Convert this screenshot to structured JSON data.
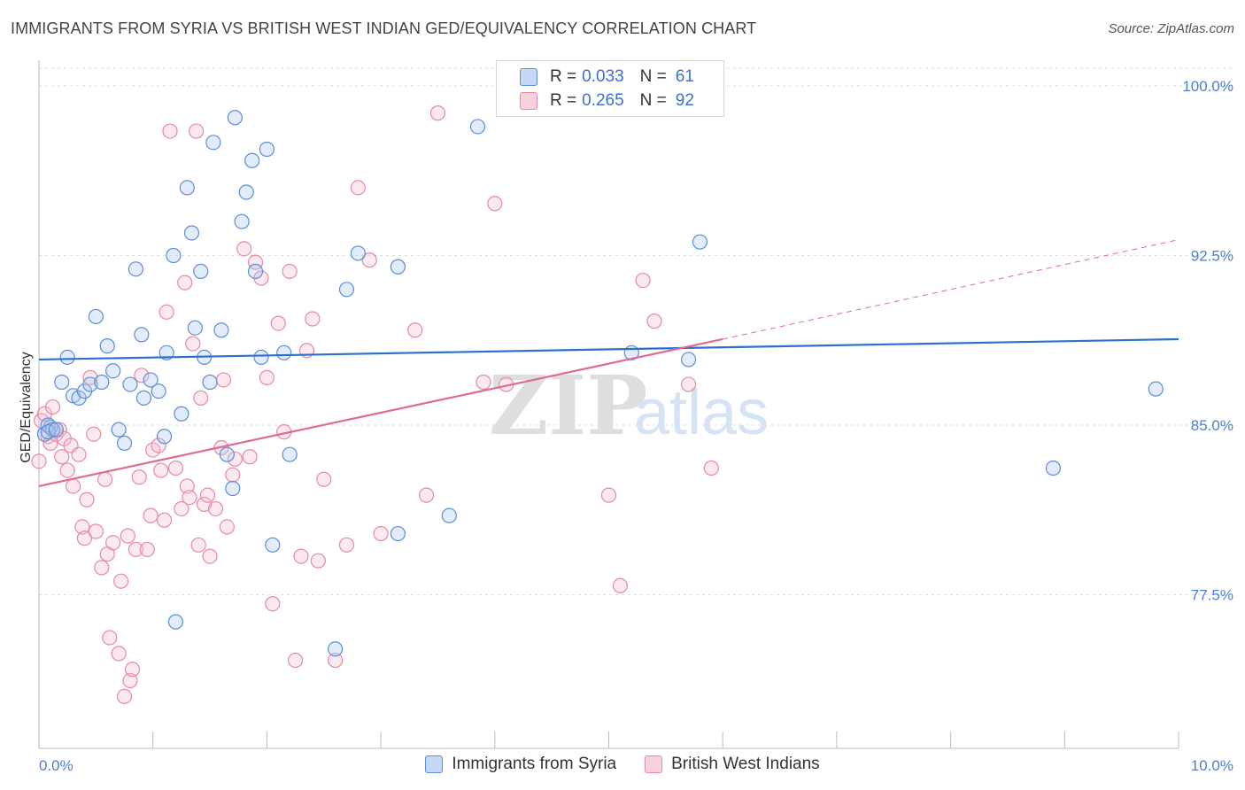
{
  "title": "IMMIGRANTS FROM SYRIA VS BRITISH WEST INDIAN GED/EQUIVALENCY CORRELATION CHART",
  "source": "Source: ZipAtlas.com",
  "watermark": {
    "zip": "ZIP",
    "atlas": "atlas"
  },
  "legend": {
    "rows": [
      {
        "r_label": "R =",
        "r_value": "0.033",
        "n_label": "N =",
        "n_value": "61"
      },
      {
        "r_label": "R =",
        "r_value": "0.265",
        "n_label": "N =",
        "n_value": "92"
      }
    ]
  },
  "colors": {
    "blue_fill": "#aec8f0",
    "blue_stroke": "#5b8ed8",
    "blue_line": "#2c6fce",
    "pink_fill": "#f5bfd0",
    "pink_stroke": "#e58aa8",
    "pink_line": "#e06a96",
    "grid": "#dddddd",
    "tick_label": "#4a7fd6"
  },
  "chart_data": {
    "type": "scatter",
    "title": "IMMIGRANTS FROM SYRIA VS BRITISH WEST INDIAN GED/EQUIVALENCY CORRELATION CHART",
    "xlabel": "",
    "ylabel": "GED/Equivalency",
    "xlim": [
      0,
      10
    ],
    "ylim": [
      70.5,
      101
    ],
    "x_tick_labels": [
      "0.0%",
      "10.0%"
    ],
    "y_ticks": [
      77.5,
      85.0,
      92.5,
      100.0
    ],
    "y_tick_labels": [
      "77.5%",
      "85.0%",
      "92.5%",
      "100.0%"
    ],
    "grid": true,
    "legend_position": "top-center",
    "series": [
      {
        "name": "Immigrants from Syria",
        "color": "blue",
        "points": [
          [
            0.05,
            84.6
          ],
          [
            0.1,
            84.9
          ],
          [
            0.08,
            85.0
          ],
          [
            0.12,
            84.8
          ],
          [
            0.2,
            86.9
          ],
          [
            0.25,
            88.0
          ],
          [
            0.3,
            86.3
          ],
          [
            0.35,
            86.2
          ],
          [
            0.4,
            86.5
          ],
          [
            0.45,
            86.8
          ],
          [
            0.5,
            89.8
          ],
          [
            0.55,
            86.9
          ],
          [
            0.6,
            88.5
          ],
          [
            0.65,
            87.4
          ],
          [
            0.7,
            84.8
          ],
          [
            0.75,
            84.2
          ],
          [
            0.8,
            86.8
          ],
          [
            0.85,
            91.9
          ],
          [
            0.9,
            89.0
          ],
          [
            0.92,
            86.2
          ],
          [
            0.98,
            87.0
          ],
          [
            1.05,
            86.5
          ],
          [
            1.1,
            84.5
          ],
          [
            1.12,
            88.2
          ],
          [
            1.18,
            92.5
          ],
          [
            1.25,
            85.5
          ],
          [
            1.3,
            95.5
          ],
          [
            1.34,
            93.5
          ],
          [
            1.37,
            89.3
          ],
          [
            1.42,
            91.8
          ],
          [
            1.45,
            88.0
          ],
          [
            1.5,
            86.9
          ],
          [
            1.53,
            97.5
          ],
          [
            1.6,
            89.2
          ],
          [
            1.65,
            83.7
          ],
          [
            1.7,
            82.2
          ],
          [
            1.72,
            98.6
          ],
          [
            1.78,
            94.0
          ],
          [
            1.82,
            95.3
          ],
          [
            1.87,
            96.7
          ],
          [
            1.9,
            91.8
          ],
          [
            1.95,
            88.0
          ],
          [
            2.0,
            97.2
          ],
          [
            2.05,
            79.7
          ],
          [
            2.15,
            88.2
          ],
          [
            2.2,
            83.7
          ],
          [
            2.7,
            91.0
          ],
          [
            2.8,
            92.6
          ],
          [
            3.15,
            92.0
          ],
          [
            3.15,
            80.2
          ],
          [
            3.6,
            81.0
          ],
          [
            3.85,
            98.2
          ],
          [
            5.2,
            88.2
          ],
          [
            5.7,
            87.9
          ],
          [
            5.8,
            93.1
          ],
          [
            8.9,
            83.1
          ],
          [
            9.8,
            86.6
          ],
          [
            1.2,
            76.3
          ],
          [
            2.6,
            75.1
          ],
          [
            0.08,
            84.7
          ],
          [
            0.15,
            84.8
          ]
        ]
      },
      {
        "name": "British West Indians",
        "color": "pink",
        "points": [
          [
            0.0,
            83.4
          ],
          [
            0.02,
            85.2
          ],
          [
            0.05,
            85.5
          ],
          [
            0.08,
            84.5
          ],
          [
            0.1,
            84.2
          ],
          [
            0.12,
            85.8
          ],
          [
            0.15,
            84.6
          ],
          [
            0.18,
            84.8
          ],
          [
            0.2,
            83.6
          ],
          [
            0.22,
            84.4
          ],
          [
            0.25,
            83.0
          ],
          [
            0.28,
            84.1
          ],
          [
            0.3,
            82.3
          ],
          [
            0.35,
            83.7
          ],
          [
            0.38,
            80.5
          ],
          [
            0.4,
            80.0
          ],
          [
            0.42,
            81.7
          ],
          [
            0.45,
            87.1
          ],
          [
            0.48,
            84.6
          ],
          [
            0.5,
            80.3
          ],
          [
            0.55,
            78.7
          ],
          [
            0.58,
            82.6
          ],
          [
            0.6,
            79.3
          ],
          [
            0.62,
            75.6
          ],
          [
            0.65,
            79.8
          ],
          [
            0.7,
            74.9
          ],
          [
            0.72,
            78.1
          ],
          [
            0.75,
            73.0
          ],
          [
            0.78,
            80.1
          ],
          [
            0.8,
            73.7
          ],
          [
            0.82,
            74.2
          ],
          [
            0.85,
            79.5
          ],
          [
            0.88,
            82.7
          ],
          [
            0.9,
            87.2
          ],
          [
            0.95,
            79.5
          ],
          [
            0.98,
            81.0
          ],
          [
            1.0,
            83.9
          ],
          [
            1.05,
            84.1
          ],
          [
            1.07,
            83.0
          ],
          [
            1.1,
            80.8
          ],
          [
            1.12,
            90.0
          ],
          [
            1.15,
            98.0
          ],
          [
            1.2,
            83.1
          ],
          [
            1.25,
            81.3
          ],
          [
            1.28,
            91.3
          ],
          [
            1.3,
            82.3
          ],
          [
            1.32,
            81.8
          ],
          [
            1.35,
            88.6
          ],
          [
            1.38,
            98.0
          ],
          [
            1.4,
            79.7
          ],
          [
            1.42,
            86.2
          ],
          [
            1.45,
            81.5
          ],
          [
            1.48,
            81.9
          ],
          [
            1.5,
            79.2
          ],
          [
            1.55,
            81.3
          ],
          [
            1.6,
            84.0
          ],
          [
            1.62,
            87.0
          ],
          [
            1.65,
            80.5
          ],
          [
            1.7,
            82.8
          ],
          [
            1.72,
            83.5
          ],
          [
            1.8,
            92.8
          ],
          [
            1.85,
            83.6
          ],
          [
            1.9,
            92.2
          ],
          [
            1.95,
            91.5
          ],
          [
            2.0,
            87.1
          ],
          [
            2.05,
            77.1
          ],
          [
            2.1,
            89.5
          ],
          [
            2.15,
            84.7
          ],
          [
            2.2,
            91.8
          ],
          [
            2.25,
            74.6
          ],
          [
            2.3,
            79.2
          ],
          [
            2.35,
            88.3
          ],
          [
            2.4,
            89.7
          ],
          [
            2.45,
            79.0
          ],
          [
            2.5,
            82.6
          ],
          [
            2.6,
            74.6
          ],
          [
            2.7,
            79.7
          ],
          [
            2.8,
            95.5
          ],
          [
            2.9,
            92.3
          ],
          [
            3.0,
            80.2
          ],
          [
            3.3,
            89.2
          ],
          [
            3.4,
            81.9
          ],
          [
            3.5,
            98.8
          ],
          [
            3.9,
            86.9
          ],
          [
            4.0,
            94.8
          ],
          [
            4.1,
            86.8
          ],
          [
            5.0,
            81.9
          ],
          [
            5.1,
            77.9
          ],
          [
            5.3,
            91.4
          ],
          [
            5.4,
            89.6
          ],
          [
            5.7,
            86.8
          ],
          [
            5.9,
            83.1
          ]
        ]
      }
    ],
    "trend_lines": [
      {
        "series": "Immigrants from Syria",
        "x": [
          0,
          10
        ],
        "y": [
          87.9,
          88.8
        ],
        "style": "solid"
      },
      {
        "series": "British West Indians",
        "x": [
          0,
          6.0
        ],
        "y": [
          82.3,
          88.8
        ],
        "style": "solid"
      },
      {
        "series": "British West Indians",
        "x": [
          6.0,
          10
        ],
        "y": [
          88.8,
          93.2
        ],
        "style": "dashed"
      }
    ]
  }
}
